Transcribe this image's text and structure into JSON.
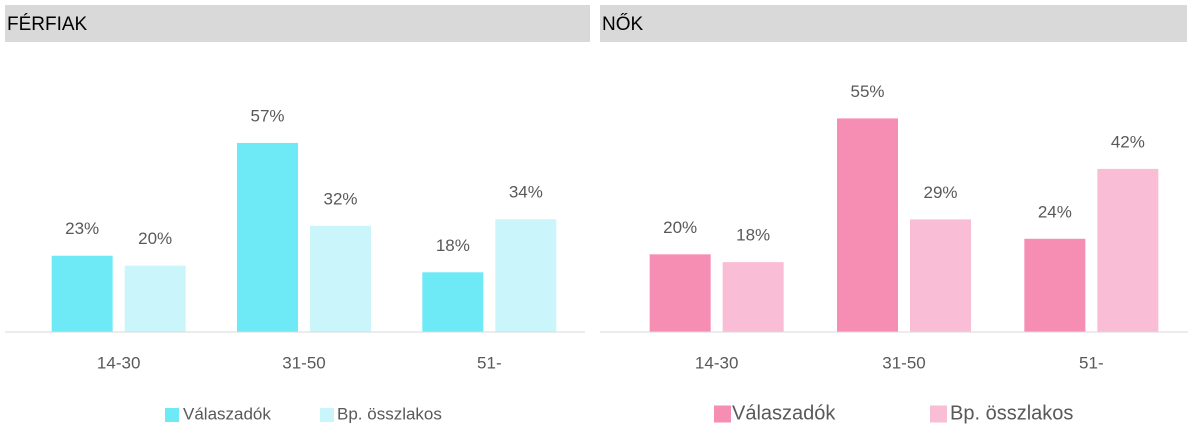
{
  "chart_data": [
    {
      "type": "bar",
      "title": "FÉRFIAK",
      "categories": [
        "14-30",
        "31-50",
        "51-"
      ],
      "series": [
        {
          "name": "Válaszadók",
          "color": "#6eeaf7",
          "values": [
            23,
            57,
            18
          ],
          "value_labels": [
            "23%",
            "57%",
            "18%"
          ]
        },
        {
          "name": "Bp. összlakos",
          "color": "#c9f5fb",
          "values": [
            20,
            32,
            34
          ],
          "value_labels": [
            "20%",
            "32%",
            "34%"
          ]
        }
      ],
      "ylim": [
        0,
        60
      ]
    },
    {
      "type": "bar",
      "title": "NŐK",
      "categories": [
        "14-30",
        "31-50",
        "51-"
      ],
      "series": [
        {
          "name": "Válaszadók",
          "color": "#f68db3",
          "values": [
            20,
            55,
            24
          ],
          "value_labels": [
            "20%",
            "55%",
            "24%"
          ]
        },
        {
          "name": "Bp. összlakos",
          "color": "#f9bed6",
          "values": [
            18,
            29,
            42
          ],
          "value_labels": [
            "18%",
            "29%",
            "42%"
          ]
        }
      ],
      "ylim": [
        0,
        60
      ]
    }
  ]
}
